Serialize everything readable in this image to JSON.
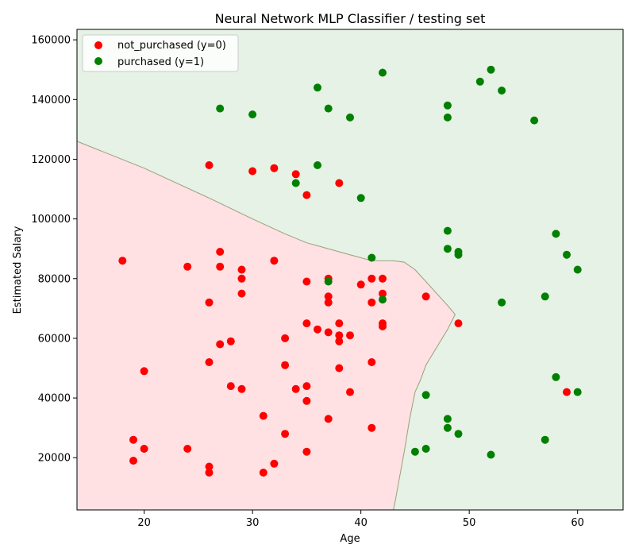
{
  "chart_data": {
    "type": "scatter",
    "title": "Neural Network MLP Classifier / testing set",
    "xlabel": "Age",
    "ylabel": "Estimated Salary",
    "xlim": [
      13.8,
      64.2
    ],
    "ylim": [
      2500,
      163500
    ],
    "xticks": [
      "20",
      "30",
      "40",
      "50",
      "60"
    ],
    "yticks": [
      "20000",
      "40000",
      "60000",
      "80000",
      "100000",
      "120000",
      "140000",
      "160000"
    ],
    "legend_position": "top-left",
    "grid": false,
    "colors": {
      "class0_point": "#ff0000",
      "class1_point": "#008000",
      "class0_region": "#ffe0e3",
      "class1_region": "#e5f2e5",
      "boundary": "#9aa07a"
    },
    "decision_boundary": {
      "x": [
        13.8,
        20,
        26,
        30,
        33,
        35,
        36,
        38,
        40,
        41,
        42,
        43,
        44,
        45,
        46,
        47,
        48,
        48.7,
        48,
        47,
        46,
        45.5,
        45,
        44.5,
        44,
        43.5,
        43.2,
        43
      ],
      "y": [
        126000,
        117000,
        107000,
        100000,
        95000,
        92000,
        91000,
        89000,
        87000,
        86000,
        86000,
        86000,
        85500,
        83000,
        79000,
        75000,
        71000,
        68000,
        63000,
        57000,
        51000,
        46000,
        42000,
        33000,
        22000,
        12000,
        6000,
        2500
      ]
    },
    "series": [
      {
        "name": "not_purchased (y=0)",
        "color": "#ff0000",
        "points": [
          [
            26,
            118000
          ],
          [
            30,
            116000
          ],
          [
            32,
            117000
          ],
          [
            34,
            115000
          ],
          [
            35,
            108000
          ],
          [
            38,
            112000
          ],
          [
            18,
            86000
          ],
          [
            24,
            84000
          ],
          [
            27,
            89000
          ],
          [
            27,
            84000
          ],
          [
            26,
            72000
          ],
          [
            29,
            83000
          ],
          [
            29,
            80000
          ],
          [
            29,
            75000
          ],
          [
            32,
            86000
          ],
          [
            35,
            79000
          ],
          [
            37,
            80000
          ],
          [
            37,
            74000
          ],
          [
            37,
            72000
          ],
          [
            40,
            78000
          ],
          [
            41,
            80000
          ],
          [
            41,
            72000
          ],
          [
            42,
            80000
          ],
          [
            42,
            75000
          ],
          [
            46,
            74000
          ],
          [
            33,
            60000
          ],
          [
            35,
            65000
          ],
          [
            36,
            63000
          ],
          [
            37,
            62000
          ],
          [
            38,
            65000
          ],
          [
            38,
            61000
          ],
          [
            38,
            59000
          ],
          [
            39,
            61000
          ],
          [
            42,
            65000
          ],
          [
            42,
            64000
          ],
          [
            49,
            65000
          ],
          [
            27,
            58000
          ],
          [
            28,
            59000
          ],
          [
            26,
            52000
          ],
          [
            20,
            49000
          ],
          [
            33,
            51000
          ],
          [
            38,
            50000
          ],
          [
            41,
            52000
          ],
          [
            28,
            44000
          ],
          [
            29,
            43000
          ],
          [
            34,
            43000
          ],
          [
            35,
            44000
          ],
          [
            35,
            39000
          ],
          [
            39,
            42000
          ],
          [
            59,
            42000
          ],
          [
            31,
            34000
          ],
          [
            37,
            33000
          ],
          [
            33,
            28000
          ],
          [
            41,
            30000
          ],
          [
            19,
            26000
          ],
          [
            20,
            23000
          ],
          [
            24,
            23000
          ],
          [
            19,
            19000
          ],
          [
            26,
            17000
          ],
          [
            26,
            15000
          ],
          [
            31,
            15000
          ],
          [
            32,
            18000
          ],
          [
            35,
            22000
          ]
        ]
      },
      {
        "name": "purchased (y=1)",
        "color": "#008000",
        "points": [
          [
            42,
            149000
          ],
          [
            52,
            150000
          ],
          [
            51,
            146000
          ],
          [
            53,
            143000
          ],
          [
            36,
            144000
          ],
          [
            48,
            138000
          ],
          [
            27,
            137000
          ],
          [
            37,
            137000
          ],
          [
            30,
            135000
          ],
          [
            39,
            134000
          ],
          [
            48,
            134000
          ],
          [
            56,
            133000
          ],
          [
            36,
            118000
          ],
          [
            34,
            112000
          ],
          [
            40,
            107000
          ],
          [
            48,
            96000
          ],
          [
            58,
            95000
          ],
          [
            48,
            90000
          ],
          [
            49,
            89000
          ],
          [
            49,
            88000
          ],
          [
            59,
            88000
          ],
          [
            41,
            87000
          ],
          [
            60,
            83000
          ],
          [
            37,
            79000
          ],
          [
            42,
            73000
          ],
          [
            53,
            72000
          ],
          [
            57,
            74000
          ],
          [
            58,
            47000
          ],
          [
            46,
            41000
          ],
          [
            60,
            42000
          ],
          [
            48,
            33000
          ],
          [
            48,
            30000
          ],
          [
            49,
            28000
          ],
          [
            57,
            26000
          ],
          [
            45,
            22000
          ],
          [
            46,
            23000
          ],
          [
            52,
            21000
          ]
        ]
      }
    ]
  }
}
